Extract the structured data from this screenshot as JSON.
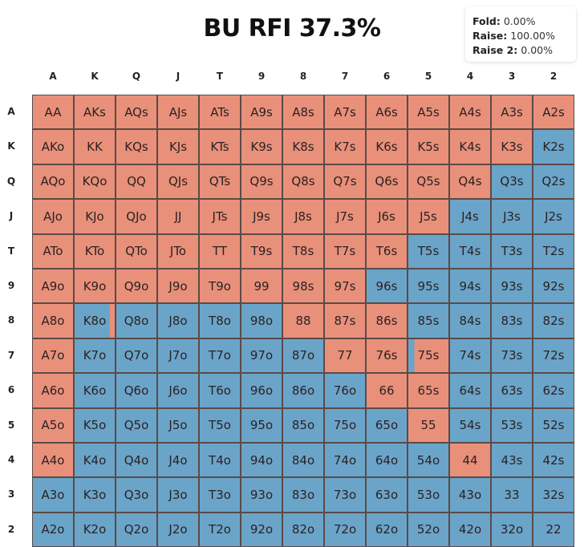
{
  "title": "BU RFI 37.3%",
  "colors": {
    "raise": "#E9907A",
    "fold": "#6BA4C9",
    "grid": "#5b4a48"
  },
  "ranks": [
    "A",
    "K",
    "Q",
    "J",
    "T",
    "9",
    "8",
    "7",
    "6",
    "5",
    "4",
    "3",
    "2"
  ],
  "hands": [
    [
      "AA",
      "AKs",
      "AQs",
      "AJs",
      "ATs",
      "A9s",
      "A8s",
      "A7s",
      "A6s",
      "A5s",
      "A4s",
      "A3s",
      "A2s"
    ],
    [
      "AKo",
      "KK",
      "KQs",
      "KJs",
      "KTs",
      "K9s",
      "K8s",
      "K7s",
      "K6s",
      "K5s",
      "K4s",
      "K3s",
      "K2s"
    ],
    [
      "AQo",
      "KQo",
      "QQ",
      "QJs",
      "QTs",
      "Q9s",
      "Q8s",
      "Q7s",
      "Q6s",
      "Q5s",
      "Q4s",
      "Q3s",
      "Q2s"
    ],
    [
      "AJo",
      "KJo",
      "QJo",
      "JJ",
      "JTs",
      "J9s",
      "J8s",
      "J7s",
      "J6s",
      "J5s",
      "J4s",
      "J3s",
      "J2s"
    ],
    [
      "ATo",
      "KTo",
      "QTo",
      "JTo",
      "TT",
      "T9s",
      "T8s",
      "T7s",
      "T6s",
      "T5s",
      "T4s",
      "T3s",
      "T2s"
    ],
    [
      "A9o",
      "K9o",
      "Q9o",
      "J9o",
      "T9o",
      "99",
      "98s",
      "97s",
      "96s",
      "95s",
      "94s",
      "93s",
      "92s"
    ],
    [
      "A8o",
      "K8o",
      "Q8o",
      "J8o",
      "T8o",
      "98o",
      "88",
      "87s",
      "86s",
      "85s",
      "84s",
      "83s",
      "82s"
    ],
    [
      "A7o",
      "K7o",
      "Q7o",
      "J7o",
      "T7o",
      "97o",
      "87o",
      "77",
      "76s",
      "75s",
      "74s",
      "73s",
      "72s"
    ],
    [
      "A6o",
      "K6o",
      "Q6o",
      "J6o",
      "T6o",
      "96o",
      "86o",
      "76o",
      "66",
      "65s",
      "64s",
      "63s",
      "62s"
    ],
    [
      "A5o",
      "K5o",
      "Q5o",
      "J5o",
      "T5o",
      "95o",
      "85o",
      "75o",
      "65o",
      "55",
      "54s",
      "53s",
      "52s"
    ],
    [
      "A4o",
      "K4o",
      "Q4o",
      "J4o",
      "T4o",
      "94o",
      "84o",
      "74o",
      "64o",
      "54o",
      "44",
      "43s",
      "42s"
    ],
    [
      "A3o",
      "K3o",
      "Q3o",
      "J3o",
      "T3o",
      "93o",
      "83o",
      "73o",
      "63o",
      "53o",
      "43o",
      "33",
      "32s"
    ],
    [
      "A2o",
      "K2o",
      "Q2o",
      "J2o",
      "T2o",
      "92o",
      "82o",
      "72o",
      "62o",
      "52o",
      "42o",
      "32o",
      "22"
    ]
  ],
  "raise_freq": [
    [
      1,
      1,
      1,
      1,
      1,
      1,
      1,
      1,
      1,
      1,
      1,
      1,
      1
    ],
    [
      1,
      1,
      1,
      1,
      1,
      1,
      1,
      1,
      1,
      1,
      1,
      1,
      0
    ],
    [
      1,
      1,
      1,
      1,
      1,
      1,
      1,
      1,
      1,
      1,
      1,
      0,
      0
    ],
    [
      1,
      1,
      1,
      1,
      1,
      1,
      1,
      1,
      1,
      1,
      0,
      0,
      0
    ],
    [
      1,
      1,
      1,
      1,
      1,
      1,
      1,
      1,
      1,
      0,
      0,
      0,
      0
    ],
    [
      1,
      1,
      1,
      1,
      1,
      1,
      1,
      1,
      0,
      0,
      0,
      0,
      0
    ],
    [
      1,
      0.12,
      0,
      0,
      0,
      0,
      1,
      1,
      1,
      0,
      0,
      0,
      0
    ],
    [
      1,
      0,
      0,
      0,
      0,
      0,
      0,
      1,
      1,
      0.85,
      0,
      0,
      0
    ],
    [
      1,
      0,
      0,
      0,
      0,
      0,
      0,
      0,
      1,
      1,
      0,
      0,
      0
    ],
    [
      1,
      0,
      0,
      0,
      0,
      0,
      0,
      0,
      0,
      1,
      0,
      0,
      0
    ],
    [
      1,
      0,
      0,
      0,
      0,
      0,
      0,
      0,
      0,
      0,
      1,
      0,
      0
    ],
    [
      0,
      0,
      0,
      0,
      0,
      0,
      0,
      0,
      0,
      0,
      0,
      0,
      0
    ],
    [
      0,
      0,
      0,
      0,
      0,
      0,
      0,
      0,
      0,
      0,
      0,
      0,
      0
    ]
  ],
  "tooltip": {
    "fold_label": "Fold:",
    "fold_value": "0.00%",
    "raise_label": "Raise:",
    "raise_value": "100.00%",
    "raise2_label": "Raise 2:",
    "raise2_value": "0.00%"
  }
}
